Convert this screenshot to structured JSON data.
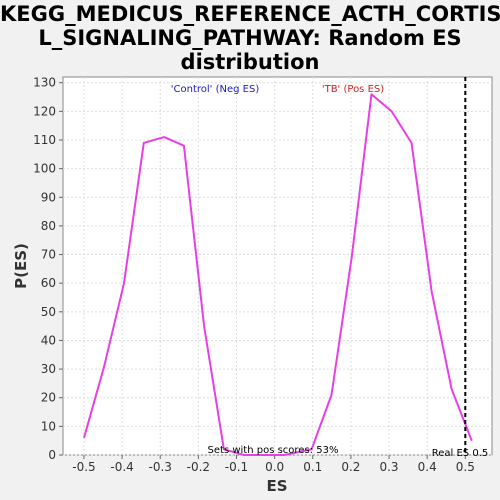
{
  "chart_data": {
    "type": "line",
    "title_lines": [
      "KEGG_MEDICUS_REFERENCE_ACTH_CORTISO",
      "L_SIGNALING_PATHWAY: Random ES",
      "distribution"
    ],
    "xlabel": "ES",
    "ylabel": "P(ES)",
    "xlim": [
      -0.555,
      0.57
    ],
    "ylim": [
      0,
      132
    ],
    "x_ticks": [
      -0.5,
      -0.4,
      -0.3,
      -0.2,
      -0.1,
      0.0,
      0.1,
      0.2,
      0.3,
      0.4,
      0.5
    ],
    "x_tick_labels": [
      "-0.5",
      "-0.4",
      "-0.3",
      "-0.2",
      "-0.1",
      "0.0",
      "0.1",
      "0.2",
      "0.3",
      "0.4",
      "0.5"
    ],
    "y_ticks": [
      0,
      10,
      20,
      30,
      40,
      50,
      60,
      70,
      80,
      90,
      100,
      110,
      120,
      130
    ],
    "y_tick_labels": [
      "0",
      "10",
      "20",
      "30",
      "40",
      "50",
      "60",
      "70",
      "80",
      "90",
      "100",
      "110",
      "120",
      "130"
    ],
    "grid": true,
    "series": [
      {
        "color": "#e83ee8",
        "x": [
          -0.5,
          -0.447,
          -0.395,
          -0.343,
          -0.29,
          -0.238,
          -0.185,
          -0.133,
          -0.08,
          -0.028,
          0.025,
          0.097,
          0.149,
          0.202,
          0.254,
          0.307,
          0.359,
          0.412,
          0.464,
          0.517
        ],
        "y": [
          6,
          31,
          60,
          109,
          111,
          108,
          45,
          2,
          0,
          0,
          0,
          2,
          21,
          69,
          126,
          120,
          109,
          57,
          23,
          5
        ]
      }
    ],
    "annotations": {
      "neg_label": "'Control' (Neg ES)",
      "pos_label": "'TB' (Pos ES)",
      "sets_label": "Sets with pos scores: 53%",
      "real_es_label": "Real ES 0.5",
      "real_es_value": 0.5,
      "neg_color": "#2020c0",
      "pos_color": "#d02020"
    }
  }
}
